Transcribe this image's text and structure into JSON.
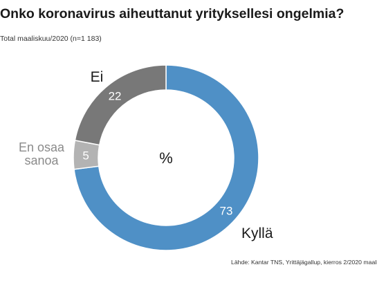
{
  "title": "Onko koronavirus aiheuttanut yrityksellesi ongelmia?",
  "subtitle": "Total maaliskuu/2020 (n=1 183)",
  "source": "Lähde: Kantar TNS, Yrittäjägallup, kierros 2/2020 maalis",
  "chart_data": {
    "type": "pie",
    "style": "donut",
    "center_label": "%",
    "slices": [
      {
        "label": "Kyllä",
        "label_lines": [
          "Kyllä"
        ],
        "value": 73,
        "value_label": "73",
        "color": "#4f90c6"
      },
      {
        "label": "En osaa sanoa",
        "label_lines": [
          "En osaa",
          "sanoa"
        ],
        "value": 5,
        "value_label": "5",
        "color": "#b3b3b3"
      },
      {
        "label": "Ei",
        "label_lines": [
          "Ei"
        ],
        "value": 22,
        "value_label": "22",
        "color": "#787878"
      }
    ],
    "legend": "none"
  }
}
